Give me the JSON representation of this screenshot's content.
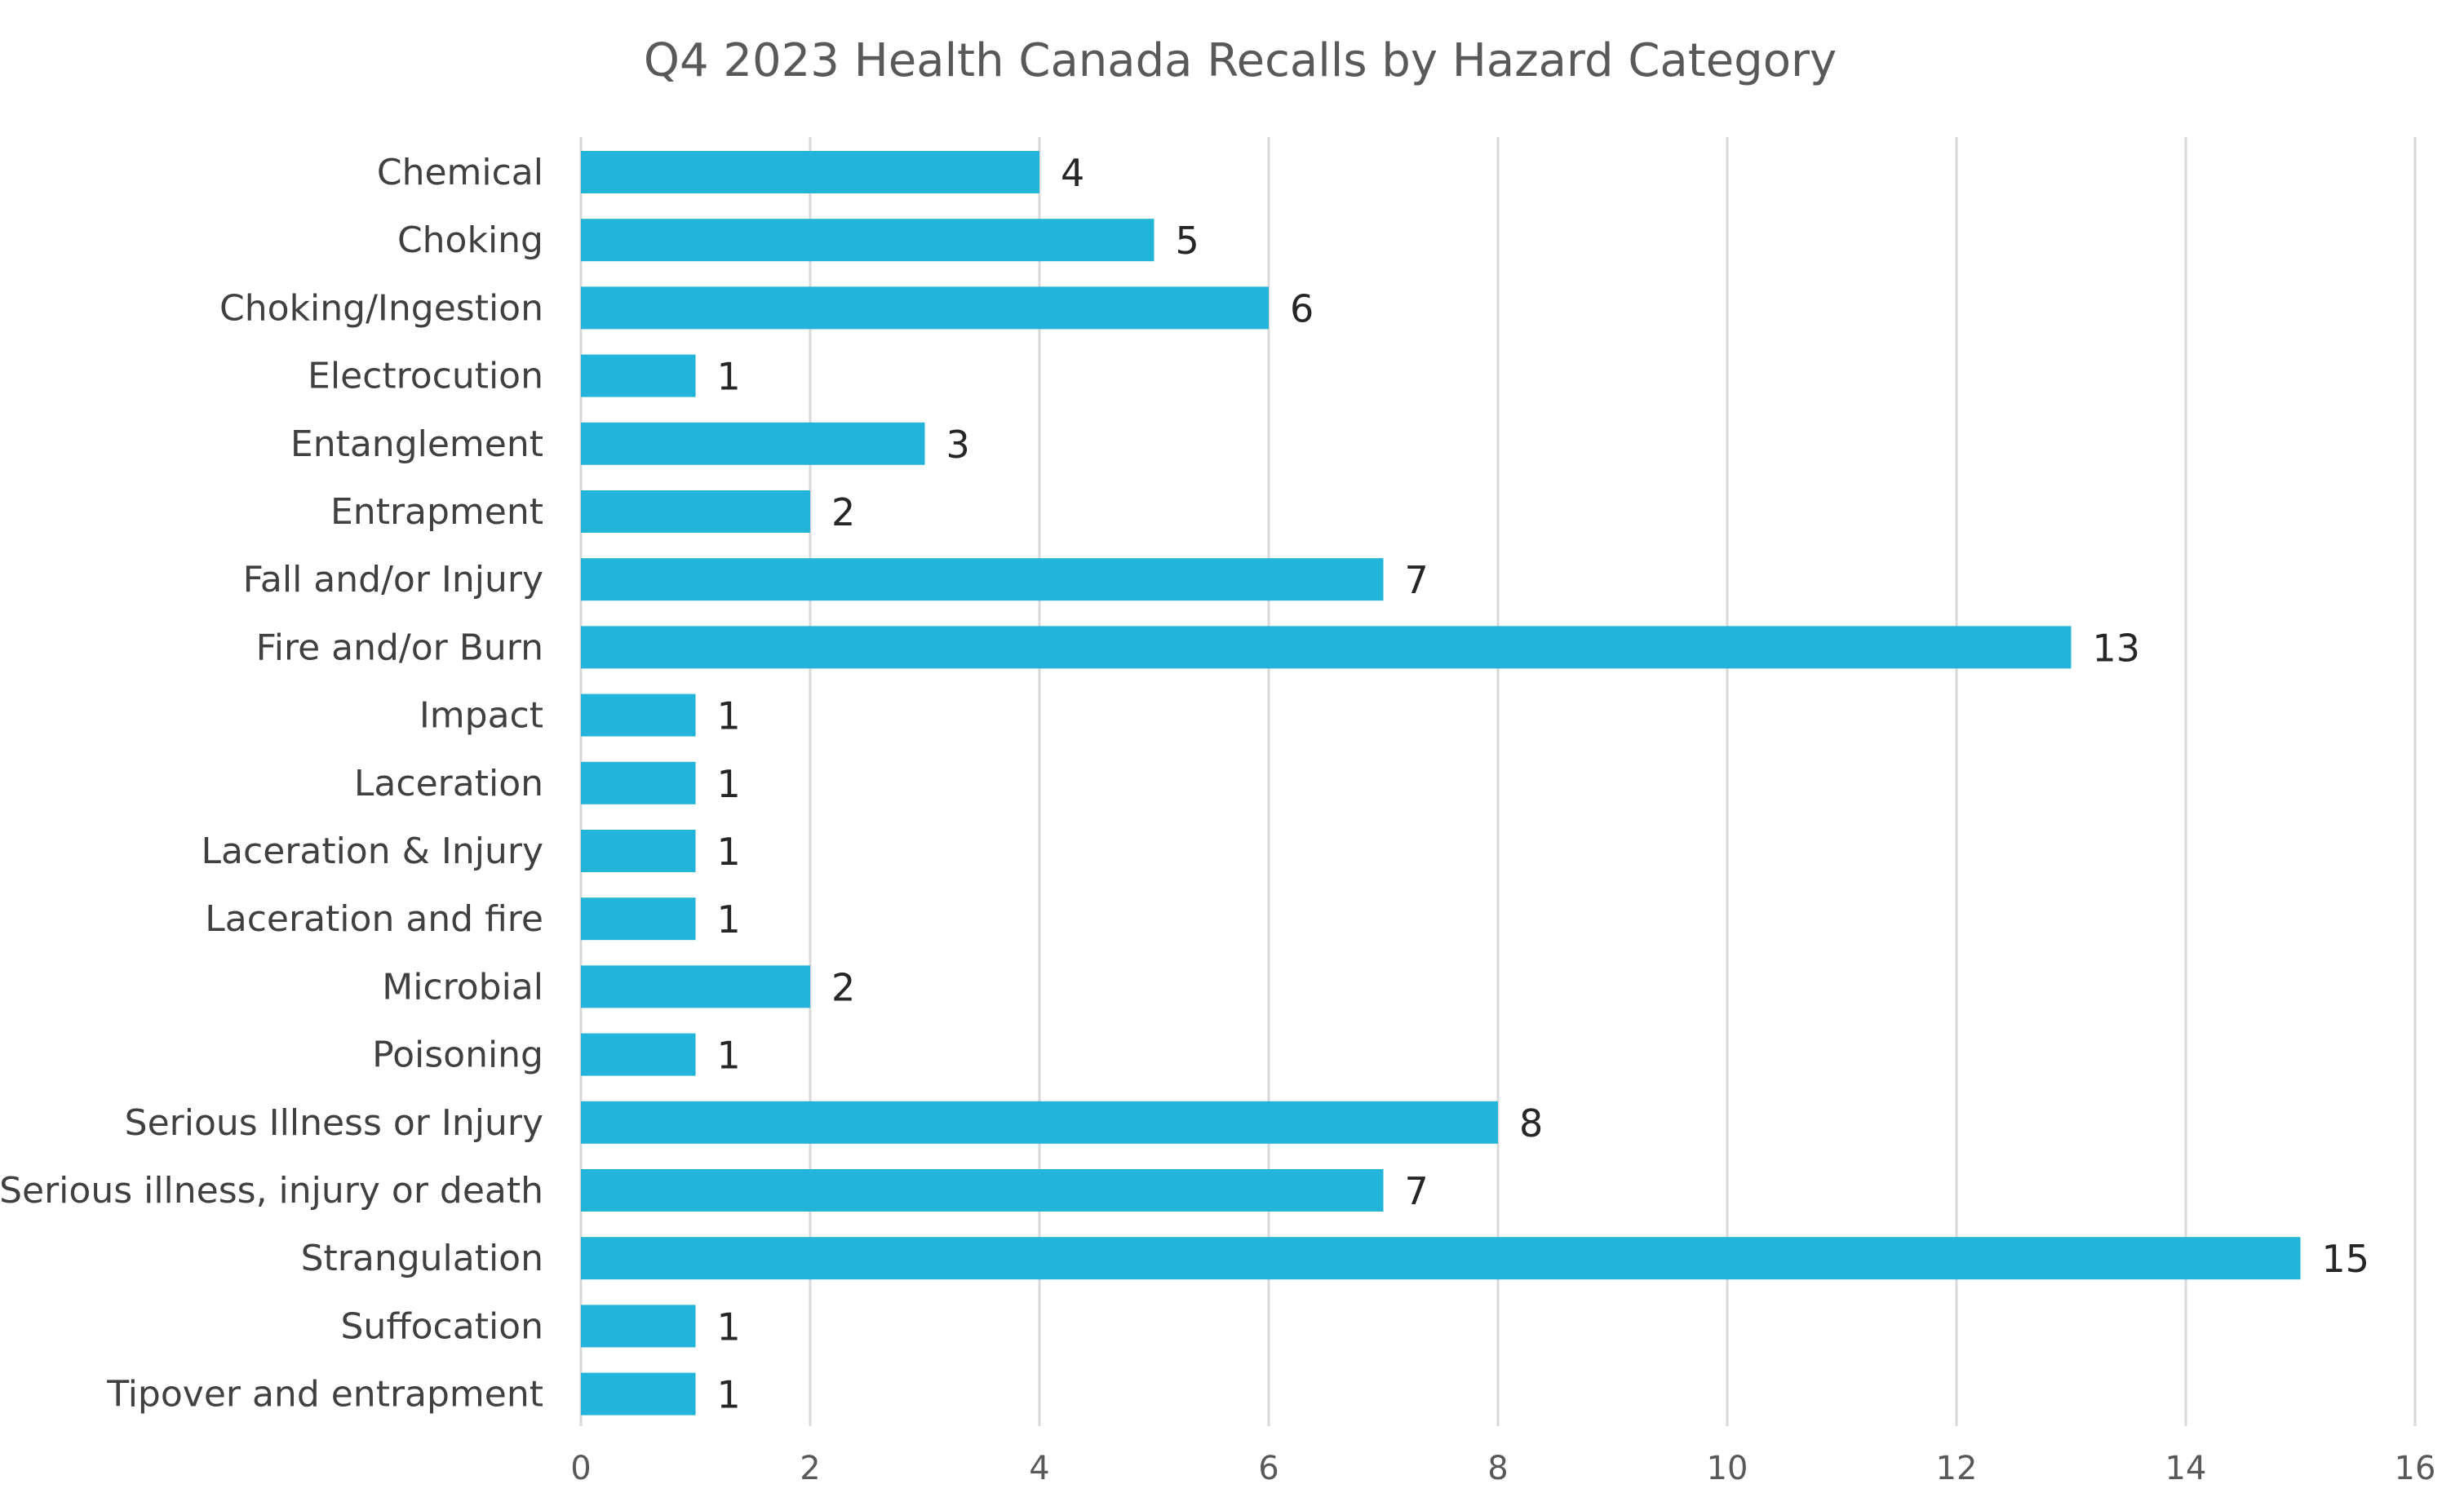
{
  "chart_data": {
    "type": "bar",
    "orientation": "horizontal",
    "title": "Q4 2023 Health Canada Recalls by Hazard Category",
    "xlabel": "",
    "ylabel": "",
    "xlim": [
      0,
      16
    ],
    "ticks": [
      "0",
      "2",
      "4",
      "6",
      "8",
      "10",
      "12",
      "14",
      "16"
    ],
    "grid": true,
    "legend": "none",
    "bar_color": "#23B5D9",
    "categories": [
      "Chemical",
      "Choking",
      "Choking/Ingestion",
      "Electrocution",
      "Entanglement",
      "Entrapment",
      "Fall and/or Injury",
      "Fire and/or Burn",
      "Impact",
      "Laceration",
      "Laceration & Injury",
      "Laceration and fire",
      "Microbial",
      "Poisoning",
      "Serious Illness or Injury",
      "Serious illness, injury or death",
      "Strangulation",
      "Suffocation",
      "Tipover and entrapment"
    ],
    "values": [
      4,
      5,
      6,
      1,
      3,
      2,
      7,
      13,
      1,
      1,
      1,
      1,
      2,
      1,
      8,
      7,
      15,
      1,
      1
    ]
  }
}
